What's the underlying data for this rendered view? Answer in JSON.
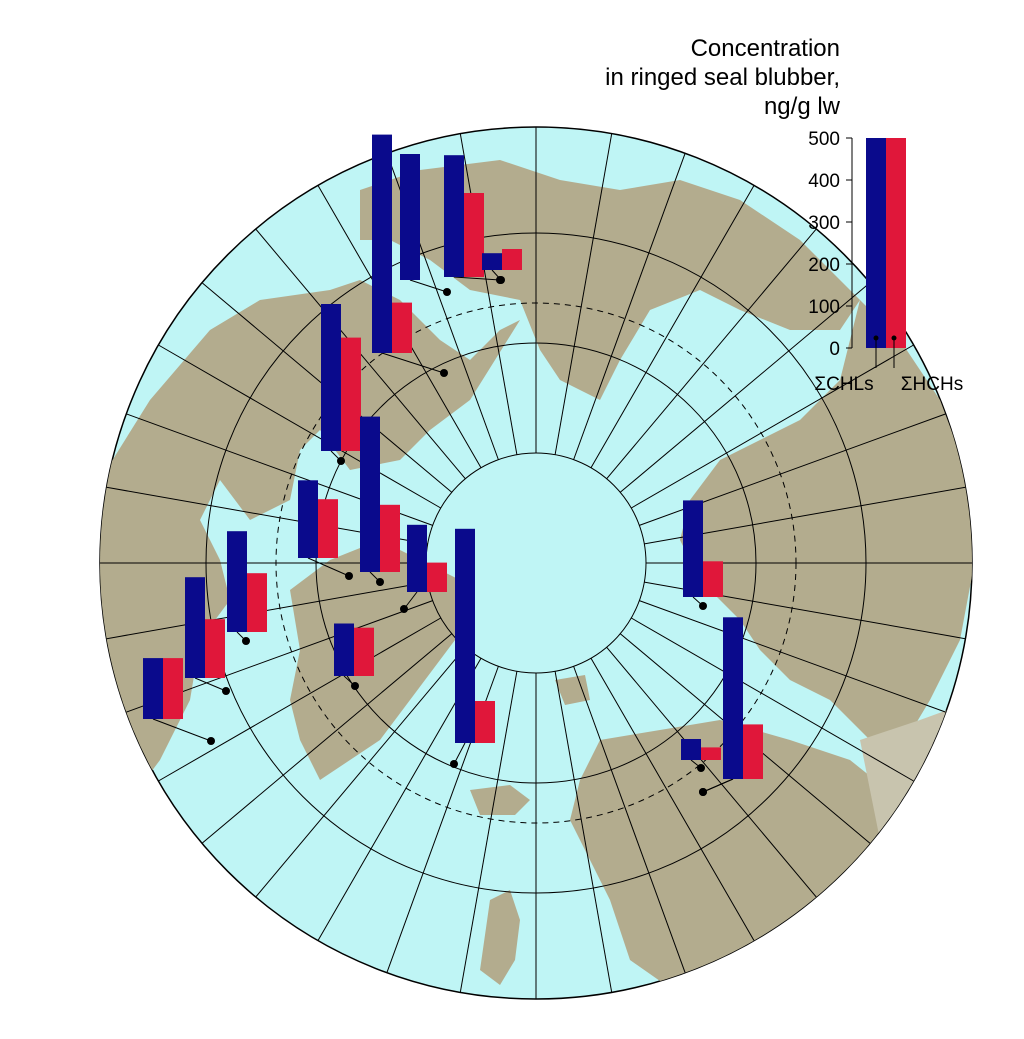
{
  "legend": {
    "title_lines": [
      "Concentration",
      "in ringed seal blubber,",
      "ng/g lw"
    ],
    "ticks": [
      "500",
      "400",
      "300",
      "200",
      "100",
      "0"
    ],
    "tick_values": [
      500,
      400,
      300,
      200,
      100,
      0
    ],
    "series": [
      {
        "name": "ΣCHLs",
        "color": "#0a0a8c"
      },
      {
        "name": "ΣHCHs",
        "color": "#e0173a"
      }
    ]
  },
  "colors": {
    "ocean": "#bff5f5",
    "land": "#b3ac8e",
    "land_alt": "#c8c4ae",
    "grid": "#000000",
    "chls": "#0a0a8c",
    "hchs": "#e0173a"
  },
  "chart_data": {
    "type": "bar",
    "units": "ng/g lw",
    "ylim": [
      0,
      500
    ],
    "series_names": [
      "ΣCHLs",
      "ΣHCHs"
    ],
    "sites": [
      {
        "chls": 520,
        "hchs": 120
      },
      {
        "chls": 300,
        "hchs": 0
      },
      {
        "chls": 290,
        "hchs": 200
      },
      {
        "chls": 40,
        "hchs": 50
      },
      {
        "chls": 350,
        "hchs": 270
      },
      {
        "chls": 370,
        "hchs": 160
      },
      {
        "chls": 185,
        "hchs": 140
      },
      {
        "chls": 240,
        "hchs": 140
      },
      {
        "chls": 240,
        "hchs": 140
      },
      {
        "chls": 145,
        "hchs": 145
      },
      {
        "chls": 125,
        "hchs": 115
      },
      {
        "chls": 160,
        "hchs": 70
      },
      {
        "chls": 230,
        "hchs": 85
      },
      {
        "chls": 510,
        "hchs": 100
      },
      {
        "chls": 385,
        "hchs": 130
      },
      {
        "chls": 50,
        "hchs": 30
      },
      {
        "chls": 190,
        "hchs": 50
      }
    ]
  }
}
